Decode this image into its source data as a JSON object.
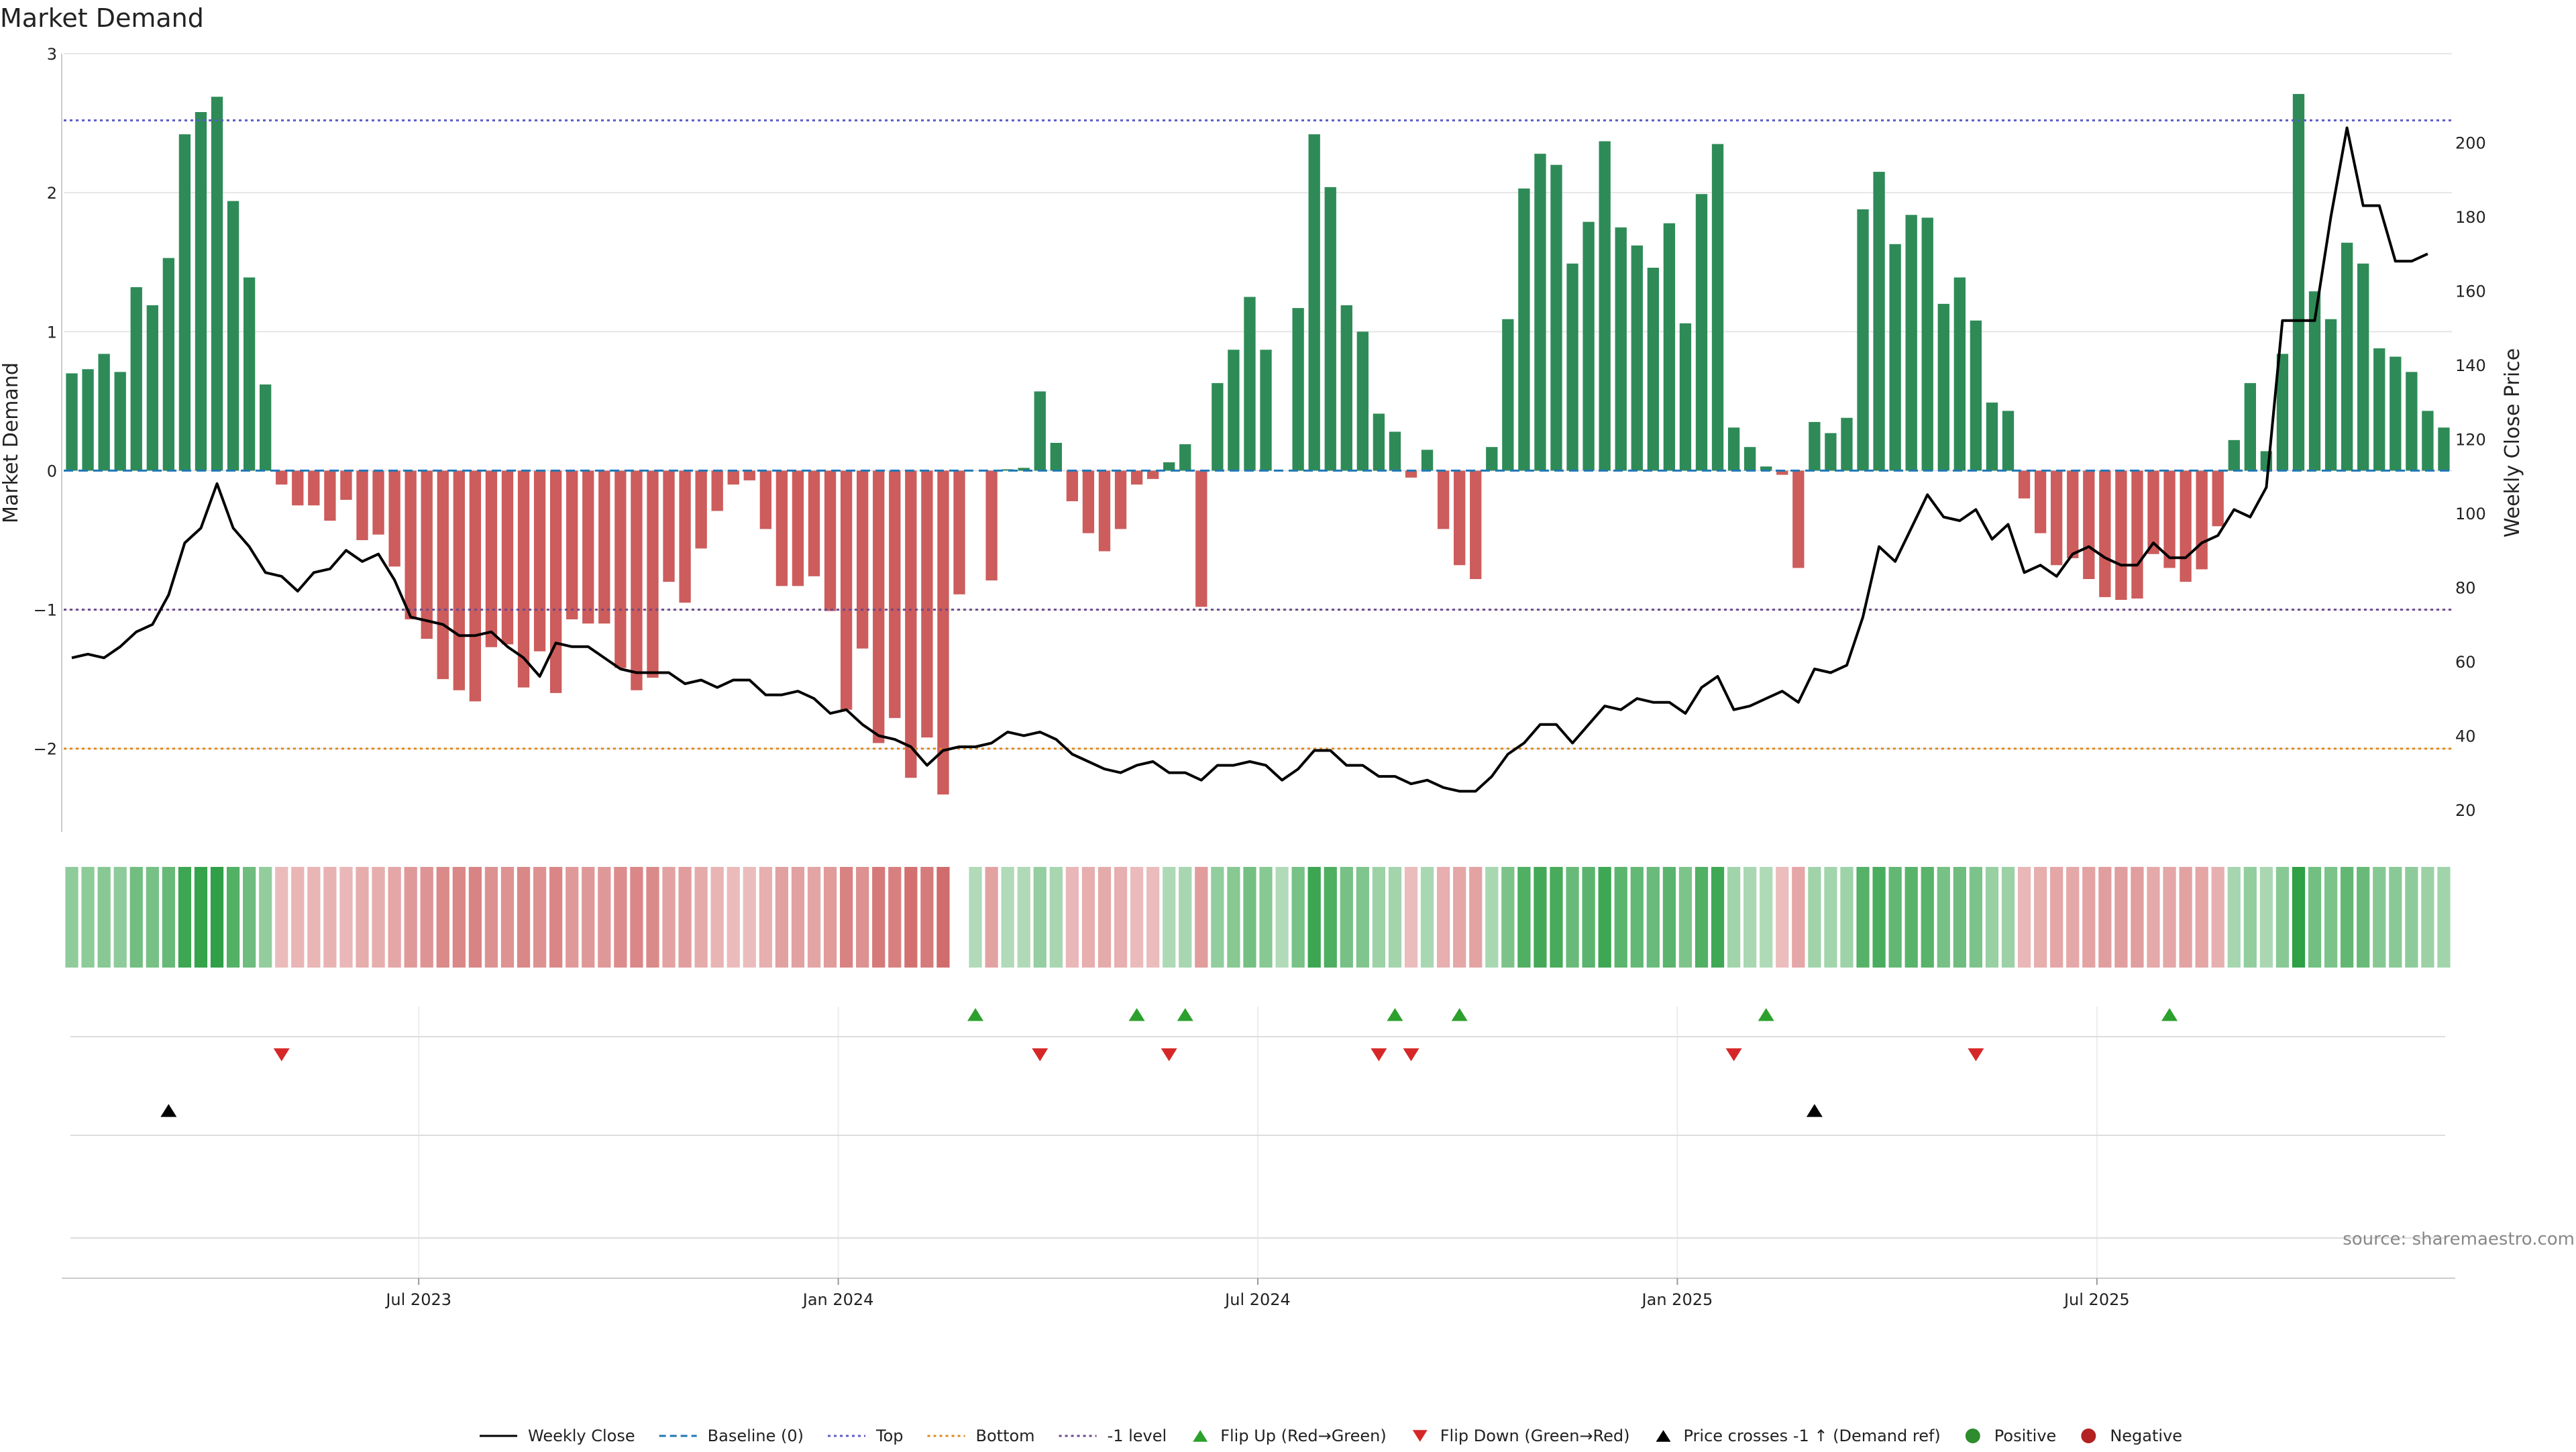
{
  "chart_data": {
    "type": "bar",
    "title": "Market Demand",
    "ylabel_left": "Market Demand",
    "ylabel_right": "Weekly Close Price",
    "ylim_left": [
      -2.6,
      3.0
    ],
    "ylim_right": [
      14,
      224
    ],
    "yticks_left": [
      3,
      2,
      1,
      0,
      -1,
      -2
    ],
    "yticks_left_labels": [
      "3",
      "2",
      "1",
      "0",
      "−1",
      "−2"
    ],
    "yticks_right": [
      200,
      180,
      160,
      140,
      120,
      100,
      80,
      60,
      40,
      20
    ],
    "x_tick_labels": [
      "Jul 2023",
      "Jan 2024",
      "Jul 2024",
      "Jan 2025",
      "Jul 2025"
    ],
    "x_tick_weeks": [
      22,
      48,
      74,
      100,
      126
    ],
    "reference_lines": [
      {
        "name": "Top",
        "value": 2.52,
        "color": "#5b5bc8"
      },
      {
        "name": "Bottom",
        "value": -2.0,
        "color": "#e08a1e"
      },
      {
        "name": "-1 level",
        "value": -1.0,
        "color": "#6a4a8c"
      },
      {
        "name": "Baseline (0)",
        "value": 0,
        "color": "#1f77b4"
      }
    ],
    "series": [
      {
        "name": "Market Demand",
        "type": "bar",
        "values": [
          0.7,
          0.73,
          0.84,
          0.71,
          1.32,
          1.19,
          1.53,
          2.42,
          2.58,
          2.69,
          1.94,
          1.39,
          0.62,
          -0.1,
          -0.25,
          -0.25,
          -0.36,
          -0.21,
          -0.5,
          -0.46,
          -0.69,
          -1.07,
          -1.21,
          -1.5,
          -1.58,
          -1.66,
          -1.27,
          -1.25,
          -1.56,
          -1.3,
          -1.6,
          -1.07,
          -1.1,
          -1.1,
          -1.42,
          -1.58,
          -1.49,
          -0.8,
          -0.95,
          -0.56,
          -0.29,
          -0.1,
          -0.07,
          -0.42,
          -0.83,
          -0.83,
          -0.76,
          -1.01,
          -1.72,
          -1.28,
          -1.96,
          -1.78,
          -2.21,
          -1.92,
          -2.33,
          -0.89,
          0,
          -0.79,
          0.01,
          0.02,
          0.57,
          0.2,
          -0.22,
          -0.45,
          -0.58,
          -0.42,
          -0.1,
          -0.06,
          0.06,
          0.19,
          -0.98,
          0.63,
          0.87,
          1.25,
          0.87,
          0,
          1.17,
          2.42,
          2.04,
          1.19,
          1.0,
          0.41,
          0.28,
          -0.05,
          0.15,
          -0.42,
          -0.68,
          -0.78,
          0.17,
          1.09,
          2.03,
          2.28,
          2.2,
          1.49,
          1.79,
          2.37,
          1.75,
          1.62,
          1.46,
          1.78,
          1.06,
          1.99,
          2.35,
          0.31,
          0.17,
          0.03,
          -0.03,
          -0.7,
          0.35,
          0.27,
          0.38,
          1.88,
          2.15,
          1.63,
          1.84,
          1.82,
          1.2,
          1.39,
          1.08,
          0.49,
          0.43,
          -0.2,
          -0.45,
          -0.68,
          -0.63,
          -0.78,
          -0.91,
          -0.93,
          -0.92,
          -0.6,
          -0.7,
          -0.8,
          -0.71,
          -0.4,
          0.22,
          0.63,
          0.14,
          0.84,
          2.71,
          1.29,
          1.09,
          1.64,
          1.49,
          0.88,
          0.82,
          0.71,
          0.43,
          0.31
        ]
      },
      {
        "name": "Weekly Close",
        "type": "line",
        "axis": "right",
        "values": [
          61,
          62,
          61,
          64,
          68,
          70,
          78,
          92,
          96,
          108,
          96,
          91,
          84,
          83,
          79,
          84,
          85,
          90,
          87,
          89,
          82,
          72,
          71,
          70,
          67,
          67,
          68,
          64,
          61,
          56,
          65,
          64,
          64,
          61,
          58,
          57,
          57,
          57,
          54,
          55,
          53,
          55,
          55,
          51,
          51,
          52,
          50,
          46,
          47,
          43,
          40,
          39,
          37,
          32,
          36,
          37,
          37,
          38,
          41,
          40,
          41,
          39,
          35,
          33,
          31,
          30,
          32,
          33,
          30,
          30,
          28,
          32,
          32,
          33,
          32,
          28,
          31,
          36,
          36,
          32,
          32,
          29,
          29,
          27,
          28,
          26,
          25,
          25,
          29,
          35,
          38,
          43,
          43,
          38,
          43,
          48,
          47,
          50,
          49,
          49,
          46,
          53,
          56,
          47,
          48,
          50,
          52,
          49,
          58,
          57,
          59,
          72,
          91,
          87,
          96,
          105,
          99,
          98,
          101,
          93,
          97,
          84,
          86,
          83,
          89,
          91,
          88,
          86,
          86,
          92,
          88,
          88,
          92,
          94,
          101,
          99,
          107,
          152,
          152,
          152,
          180,
          204,
          183,
          183,
          168,
          168,
          170
        ]
      }
    ],
    "heat_strip": {
      "label": "demand heat strip",
      "encoding": "one cell per week, color = sign and magnitude of Market Demand",
      "gap_week": 55
    },
    "event_rows": [
      {
        "name": "Flip Up (Red→Green)",
        "marker": "triangle-up",
        "color": "#2ca02c",
        "weeks": [
          56,
          66,
          69,
          82,
          86,
          105,
          130
        ]
      },
      {
        "name": "Flip Down (Green→Red)",
        "marker": "triangle-down",
        "color": "#d62728",
        "weeks": [
          13,
          60,
          68,
          81,
          83,
          103,
          118
        ]
      },
      {
        "name": "Price crosses -1 ↑ (Demand ref)",
        "marker": "triangle-up",
        "color": "#000000",
        "weeks": [
          6,
          108
        ]
      }
    ],
    "annotation": "source: sharemaestro.com",
    "legend": [
      {
        "label": "Weekly Close",
        "kind": "line-solid",
        "color": "#000000"
      },
      {
        "label": "Baseline (0)",
        "kind": "line-dashed",
        "color": "#1f77b4"
      },
      {
        "label": "Top",
        "kind": "line-dotted",
        "color": "#5b5bc8"
      },
      {
        "label": "Bottom",
        "kind": "line-dotted",
        "color": "#e08a1e"
      },
      {
        "label": "-1 level",
        "kind": "line-dotted",
        "color": "#6a4a8c"
      },
      {
        "label": "Flip Up (Red→Green)",
        "kind": "triangle-up",
        "color": "#2ca02c"
      },
      {
        "label": "Flip Down (Green→Red)",
        "kind": "triangle-down",
        "color": "#d62728"
      },
      {
        "label": "Price crosses -1 ↑ (Demand ref)",
        "kind": "triangle-up",
        "color": "#000000"
      },
      {
        "label": "Positive",
        "kind": "dot",
        "color": "#2e8b2e"
      },
      {
        "label": "Negative",
        "kind": "dot",
        "color": "#b22222"
      }
    ],
    "colors": {
      "positive_bar": "#2e8b57",
      "negative_bar": "#cd5c5c",
      "grid": "#e6e6e6",
      "price_line": "#000000"
    }
  }
}
